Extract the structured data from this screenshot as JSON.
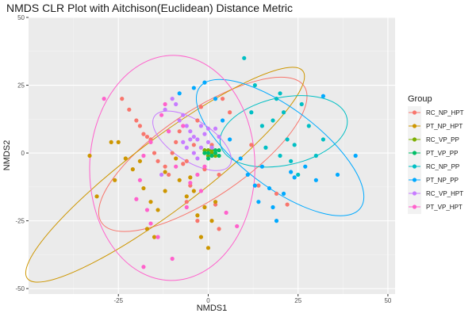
{
  "chart_data": {
    "type": "scatter",
    "title": "NMDS CLR Plot with Aitchison(Euclidean) Distance Metric",
    "xlabel": "NMDS1",
    "ylabel": "NMDS2",
    "xlim": [
      -50,
      52
    ],
    "ylim": [
      -52,
      50
    ],
    "xticks": [
      -25,
      0,
      25,
      50
    ],
    "yticks": [
      -50,
      -25,
      0,
      25,
      50
    ],
    "grid": true,
    "legend_title": "Group",
    "legend_position": "right",
    "series": [
      {
        "name": "RC_NP_HPT",
        "color": "#F8766D",
        "points": [
          [
            -24,
            20
          ],
          [
            -22,
            16
          ],
          [
            -20,
            12
          ],
          [
            -19,
            10
          ],
          [
            -18,
            7
          ],
          [
            -17,
            6
          ],
          [
            -16,
            5
          ],
          [
            -15,
            0
          ],
          [
            -14,
            -3
          ],
          [
            -12,
            -5
          ],
          [
            -11,
            -8
          ],
          [
            -10,
            0
          ],
          [
            -9,
            4
          ],
          [
            -8,
            8
          ],
          [
            -7,
            -4
          ],
          [
            -6,
            -3
          ],
          [
            -5,
            -12
          ],
          [
            -4,
            3
          ],
          [
            -3,
            12
          ],
          [
            -2,
            17
          ],
          [
            -1,
            -6
          ],
          [
            1,
            3
          ],
          [
            3,
            -8
          ],
          [
            4,
            20
          ],
          [
            6,
            15
          ],
          [
            12,
            3
          ],
          [
            14,
            -12
          ],
          [
            19,
            -15
          ],
          [
            22,
            -19
          ],
          [
            2,
            -19
          ],
          [
            3,
            -28
          ],
          [
            -3,
            -25
          ],
          [
            -6,
            -18
          ]
        ]
      },
      {
        "name": "PT_NP_HPT",
        "color": "#CD9600",
        "points": [
          [
            -33,
            -1
          ],
          [
            -31,
            -16
          ],
          [
            -27,
            4
          ],
          [
            -26,
            -10
          ],
          [
            -25,
            4
          ],
          [
            -23,
            -2
          ],
          [
            -21,
            -6
          ],
          [
            -19,
            -3
          ],
          [
            -18,
            -13
          ],
          [
            -17,
            -28
          ],
          [
            -16,
            -18
          ],
          [
            -14,
            -21
          ],
          [
            -12,
            -7
          ],
          [
            -12,
            -14
          ],
          [
            -9,
            -2
          ],
          [
            -8,
            -10
          ],
          [
            -6,
            -16
          ],
          [
            -5,
            -9
          ],
          [
            -4,
            -14
          ],
          [
            -3,
            -23
          ],
          [
            -2,
            -31
          ],
          [
            -1,
            -20
          ],
          [
            0,
            -35
          ],
          [
            1,
            -25
          ],
          [
            2,
            -18
          ],
          [
            -15,
            -31
          ]
        ]
      },
      {
        "name": "RC_VP_PP",
        "color": "#7CAE00",
        "points": [
          [
            -1,
            0
          ],
          [
            0,
            1
          ],
          [
            0,
            -1
          ],
          [
            1,
            0
          ],
          [
            1,
            1
          ],
          [
            2,
            -1
          ],
          [
            -1,
            1
          ]
        ]
      },
      {
        "name": "PT_VP_PP",
        "color": "#00BE67",
        "points": [
          [
            0,
            0
          ],
          [
            1,
            -1
          ],
          [
            2,
            1
          ],
          [
            2,
            0
          ],
          [
            3,
            -1
          ],
          [
            -1,
            0
          ],
          [
            1,
            2
          ],
          [
            3,
            1
          ],
          [
            0,
            -2
          ]
        ]
      },
      {
        "name": "RC_NP_PP",
        "color": "#00BFC4",
        "points": [
          [
            10,
            35
          ],
          [
            12,
            15
          ],
          [
            13,
            25
          ],
          [
            15,
            10
          ],
          [
            16,
            2
          ],
          [
            18,
            12
          ],
          [
            19,
            20
          ],
          [
            20,
            22
          ],
          [
            21,
            15
          ],
          [
            22,
            5
          ],
          [
            23,
            -3
          ],
          [
            24,
            3
          ],
          [
            25,
            -8
          ],
          [
            26,
            18
          ],
          [
            28,
            10
          ],
          [
            30,
            -1
          ],
          [
            32,
            5
          ],
          [
            20,
            -1
          ]
        ]
      },
      {
        "name": "PT_NP_PP",
        "color": "#00A9FF",
        "points": [
          [
            -8,
            22
          ],
          [
            -4,
            24
          ],
          [
            -1,
            26
          ],
          [
            2,
            20
          ],
          [
            4,
            12
          ],
          [
            6,
            5
          ],
          [
            9,
            -2
          ],
          [
            11,
            -8
          ],
          [
            13,
            -12
          ],
          [
            14,
            -18
          ],
          [
            17,
            -13
          ],
          [
            19,
            -25
          ],
          [
            21,
            -15
          ],
          [
            23,
            -7
          ],
          [
            24,
            -9
          ],
          [
            27,
            -5
          ],
          [
            30,
            -10
          ],
          [
            32,
            21
          ],
          [
            36,
            -8
          ],
          [
            41,
            -1
          ],
          [
            18,
            -20
          ],
          [
            15,
            -5
          ]
        ]
      },
      {
        "name": "RC_VP_HPT",
        "color": "#C77CFF",
        "points": [
          [
            -12,
            16
          ],
          [
            -10,
            20
          ],
          [
            -9,
            18
          ],
          [
            -8,
            12
          ],
          [
            -7,
            14
          ],
          [
            -6,
            10
          ],
          [
            -5,
            8
          ],
          [
            -4,
            6
          ],
          [
            -3,
            5
          ],
          [
            -2,
            10
          ],
          [
            -1,
            7
          ],
          [
            0,
            4
          ],
          [
            1,
            2
          ],
          [
            2,
            9
          ],
          [
            3,
            6
          ],
          [
            -11,
            8
          ],
          [
            -6,
            2
          ],
          [
            -4,
            0
          ],
          [
            -3,
            -2
          ],
          [
            -7,
            4
          ],
          [
            0,
            9
          ],
          [
            -2,
            2
          ],
          [
            -5,
            5
          ],
          [
            -13,
            -8
          ]
        ]
      },
      {
        "name": "PT_VP_HPT",
        "color": "#FF61CC",
        "points": [
          [
            -29,
            20
          ],
          [
            -20,
            -17
          ],
          [
            -19,
            -10
          ],
          [
            -18,
            -1
          ],
          [
            -17,
            -21
          ],
          [
            -16,
            -26
          ],
          [
            -14,
            -31
          ],
          [
            -13,
            14
          ],
          [
            -11,
            8
          ],
          [
            -10,
            -39
          ],
          [
            -9,
            -5
          ],
          [
            -7,
            10
          ],
          [
            -6,
            -20
          ],
          [
            -5,
            -11
          ],
          [
            -3,
            -8
          ],
          [
            -2,
            -14
          ],
          [
            -1,
            -5
          ],
          [
            5,
            -22
          ],
          [
            8,
            -27
          ],
          [
            -18,
            -42
          ],
          [
            -16,
            4
          ],
          [
            -12,
            18
          ]
        ]
      }
    ],
    "ellipses": [
      {
        "group": "RC_NP_HPT",
        "color": "#F8766D",
        "cx": -1.5,
        "cy": -0.5,
        "rx": 34,
        "ry": 16,
        "rotate": 34
      },
      {
        "group": "PT_NP_HPT",
        "color": "#CD9600",
        "cx": -12,
        "cy": -8,
        "rx": 48,
        "ry": 13,
        "rotate": 37
      },
      {
        "group": "RC_NP_PP",
        "color": "#00BFC4",
        "cx": 21,
        "cy": 8,
        "rx": 18,
        "ry": 12.5,
        "rotate": 12
      },
      {
        "group": "PT_NP_PP",
        "color": "#00A9FF",
        "cx": 20,
        "cy": 2,
        "rx": 28,
        "ry": 14.5,
        "rotate": -37
      },
      {
        "group": "RC_VP_HPT",
        "color": "#C77CFF",
        "cx": -4.5,
        "cy": 4.5,
        "rx": 12.5,
        "ry": 7.5,
        "rotate": -33
      },
      {
        "group": "PT_VP_HPT",
        "color": "#FF61CC",
        "cx": -10,
        "cy": -5.5,
        "rx": 23,
        "ry": 41.5,
        "rotate": -1
      }
    ]
  }
}
